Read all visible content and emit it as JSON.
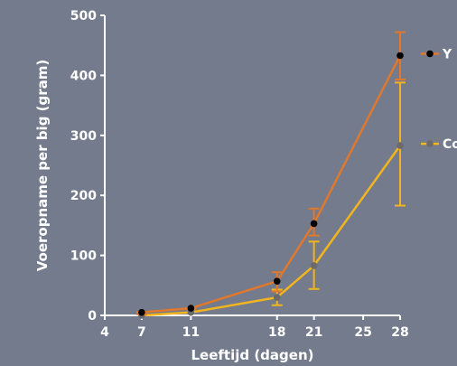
{
  "chart_data": {
    "type": "line",
    "xlabel": "Leeftijd (dagen)",
    "ylabel": "Voeropname per big (gram)",
    "xlim": [
      4,
      28
    ],
    "ylim": [
      0,
      500
    ],
    "xticks": [
      4,
      7,
      11,
      18,
      21,
      25,
      28
    ],
    "yticks": [
      0,
      100,
      200,
      300,
      400,
      500
    ],
    "grid": false,
    "legend_position": "right",
    "series": [
      {
        "name": "Y",
        "color": "#e0782d",
        "marker_color": "#000000",
        "x": [
          7,
          11,
          18,
          21,
          28
        ],
        "y": [
          5,
          12,
          57,
          153,
          433
        ],
        "error_low": [
          2,
          10,
          40,
          133,
          393
        ],
        "error_high": [
          6,
          12,
          72,
          178,
          472
        ]
      },
      {
        "name": "Co",
        "color": "#f2b51e",
        "marker_color": "#6b6b6b",
        "x": [
          7,
          11,
          18,
          21,
          28
        ],
        "y": [
          0,
          5,
          30,
          83,
          283
        ],
        "error_low": [
          0,
          5,
          17,
          44,
          183
        ],
        "error_high": [
          0,
          5,
          43,
          123,
          388
        ]
      }
    ]
  }
}
